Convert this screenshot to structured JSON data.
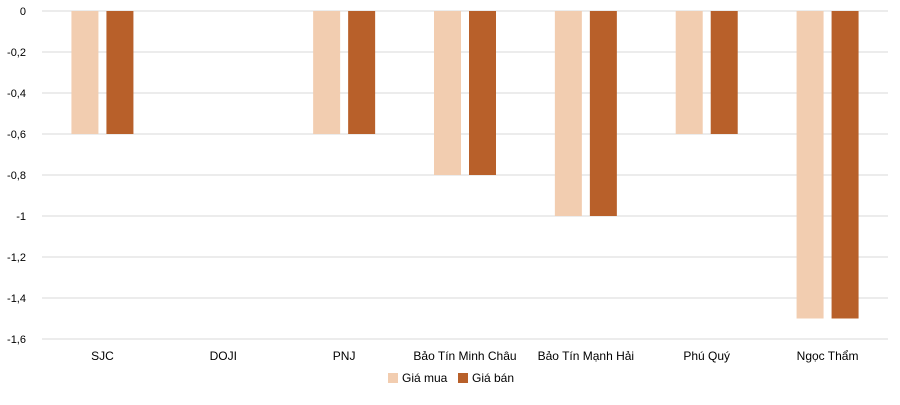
{
  "chart_data": {
    "type": "bar",
    "title": "",
    "xlabel": "",
    "ylabel": "",
    "categories": [
      "SJC",
      "DOJI",
      "PNJ",
      "Bảo Tín Minh Châu",
      "Bảo Tín Mạnh Hải",
      "Phú Quý",
      "Ngọc Thẩm"
    ],
    "series": [
      {
        "name": "Giá mua",
        "color": "#F2CDB0",
        "values": [
          -0.6,
          0,
          -0.6,
          -0.8,
          -1,
          -0.6,
          -1.5
        ]
      },
      {
        "name": "Giá bán",
        "color": "#B8602A",
        "values": [
          -0.6,
          0,
          -0.6,
          -0.8,
          -1,
          -0.6,
          -1.5
        ]
      }
    ],
    "ylim": [
      -1.6,
      0
    ],
    "yticks": [
      "0",
      "-0,2",
      "-0,4",
      "-0,6",
      "-0,8",
      "-1",
      "-1,2",
      "-1,4",
      "-1,6"
    ],
    "ytick_values": [
      0,
      -0.2,
      -0.4,
      -0.6,
      -0.8,
      -1,
      -1.2,
      -1.4,
      -1.6
    ],
    "grid": true,
    "gridline_color": "#D9D9D9",
    "legend_position": "bottom"
  }
}
